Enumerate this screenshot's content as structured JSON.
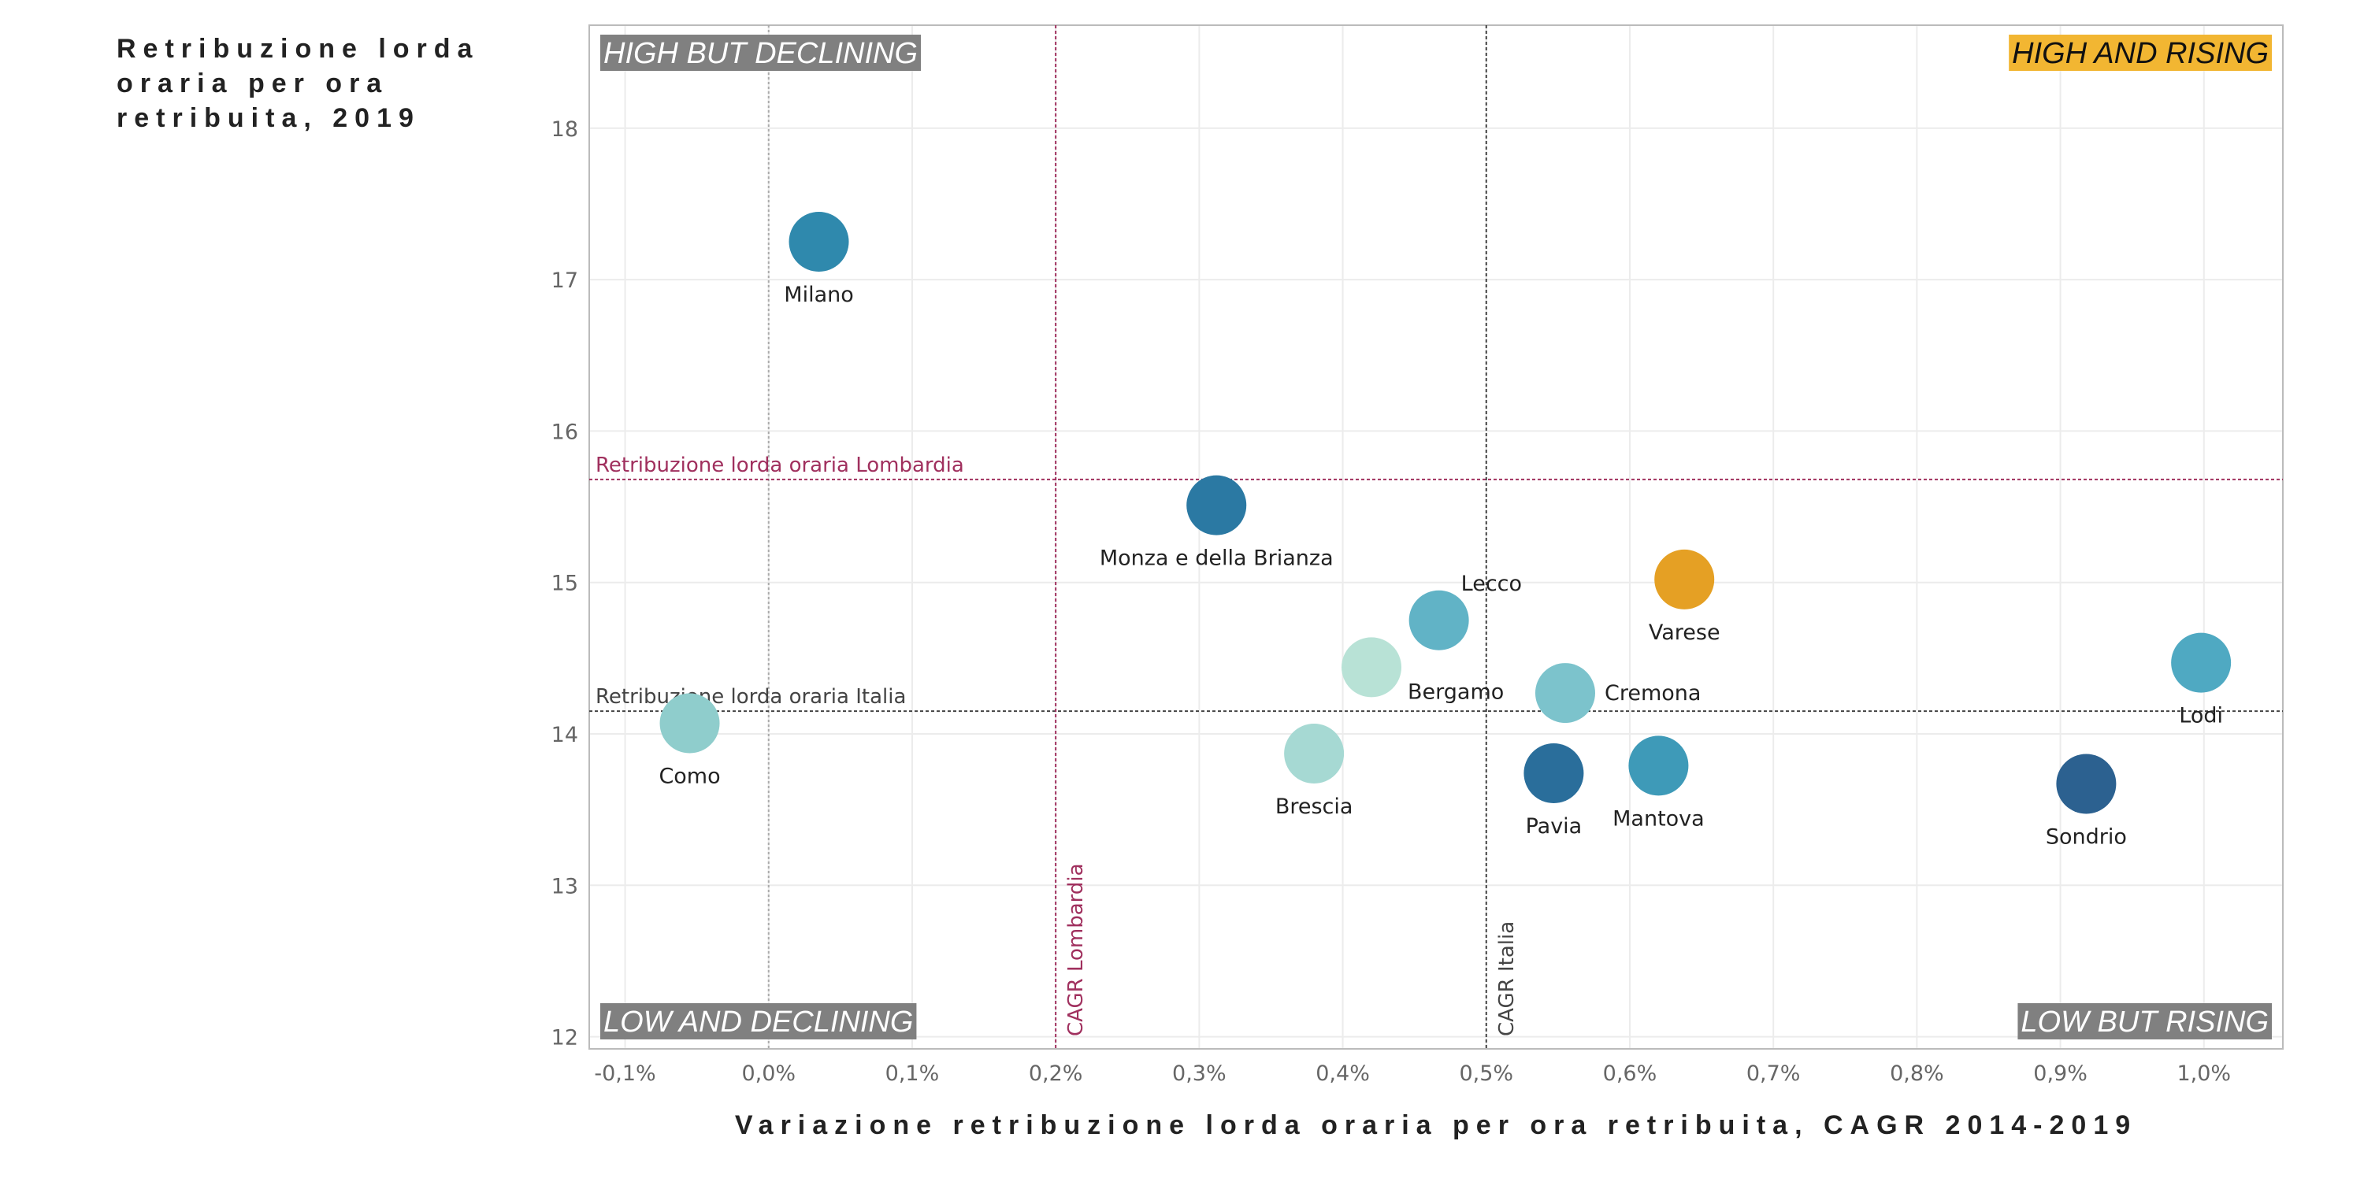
{
  "chart_data": {
    "type": "scatter",
    "title": "Retribuzione lorda oraria per ora retribuita, 2019",
    "xlabel": "Variazione retribuzione lorda oraria per ora retribuita, CAGR 2014-2019",
    "ylabel": "Retribuzione lorda oraria per ora retribuita, 2019",
    "xlim": [
      -0.125,
      1.055
    ],
    "ylim": [
      11.92,
      18.68
    ],
    "x_ticks": [
      -0.1,
      0.0,
      0.1,
      0.2,
      0.3,
      0.4,
      0.5,
      0.6,
      0.7,
      0.8,
      0.9,
      1.0
    ],
    "x_tick_labels": [
      "-0,1%",
      "0,0%",
      "0,1%",
      "0,2%",
      "0,3%",
      "0,4%",
      "0,5%",
      "0,6%",
      "0,7%",
      "0,8%",
      "0,9%",
      "1,0%"
    ],
    "y_ticks": [
      12,
      13,
      14,
      15,
      16,
      17,
      18
    ],
    "y_tick_labels": [
      "12",
      "13",
      "14",
      "15",
      "16",
      "17",
      "18"
    ],
    "grid": true,
    "points": [
      {
        "name": "Milano",
        "x": 0.035,
        "y": 17.25,
        "color": "#2f89ad",
        "label_pos": "below"
      },
      {
        "name": "Monza e della Brianza",
        "x": 0.312,
        "y": 15.51,
        "color": "#2b79a3",
        "label_pos": "below"
      },
      {
        "name": "Lecco",
        "x": 0.467,
        "y": 14.75,
        "color": "#61b3c6",
        "label_pos": "upper-right"
      },
      {
        "name": "Bergamo",
        "x": 0.42,
        "y": 14.44,
        "color": "#b8e2d6",
        "label_pos": "lower-right"
      },
      {
        "name": "Varese",
        "x": 0.638,
        "y": 15.02,
        "color": "#e5a024",
        "label_pos": "below"
      },
      {
        "name": "Cremona",
        "x": 0.555,
        "y": 14.27,
        "color": "#7cc3cc",
        "label_pos": "right"
      },
      {
        "name": "Lodi",
        "x": 0.998,
        "y": 14.47,
        "color": "#4fa9c2",
        "label_pos": "below"
      },
      {
        "name": "Como",
        "x": -0.055,
        "y": 14.07,
        "color": "#8fcdcc",
        "label_pos": "below"
      },
      {
        "name": "Brescia",
        "x": 0.38,
        "y": 13.87,
        "color": "#a6d9d3",
        "label_pos": "below"
      },
      {
        "name": "Pavia",
        "x": 0.547,
        "y": 13.74,
        "color": "#2a6e9b",
        "label_pos": "below"
      },
      {
        "name": "Mantova",
        "x": 0.62,
        "y": 13.79,
        "color": "#3e9ab8",
        "label_pos": "below"
      },
      {
        "name": "Sondrio",
        "x": 0.918,
        "y": 13.67,
        "color": "#2c6190",
        "label_pos": "below"
      }
    ],
    "reference_lines": [
      {
        "orientation": "horizontal",
        "value": 15.68,
        "label": "Retribuzione lorda oraria Lombardia",
        "color": "#a0305e"
      },
      {
        "orientation": "horizontal",
        "value": 14.15,
        "label": "Retribuzione lorda oraria Italia",
        "color": "#444444"
      },
      {
        "orientation": "vertical",
        "value": 0.2,
        "label": "CAGR Lombardia",
        "color": "#a0305e"
      },
      {
        "orientation": "vertical",
        "value": 0.5,
        "label": "CAGR Italia",
        "color": "#444444"
      }
    ],
    "zero_line": {
      "orientation": "vertical",
      "value": 0.0,
      "color": "#aaaaaa"
    },
    "quadrant_labels": [
      {
        "text": "HIGH BUT DECLINING",
        "position": "top-left",
        "bg": "#808080",
        "fg": "#ffffff"
      },
      {
        "text": "HIGH AND RISING",
        "position": "top-right",
        "bg": "#f2b632",
        "fg": "#111111"
      },
      {
        "text": "LOW AND DECLINING",
        "position": "bottom-left",
        "bg": "#808080",
        "fg": "#ffffff"
      },
      {
        "text": "LOW BUT RISING",
        "position": "bottom-right",
        "bg": "#808080",
        "fg": "#ffffff"
      }
    ]
  }
}
